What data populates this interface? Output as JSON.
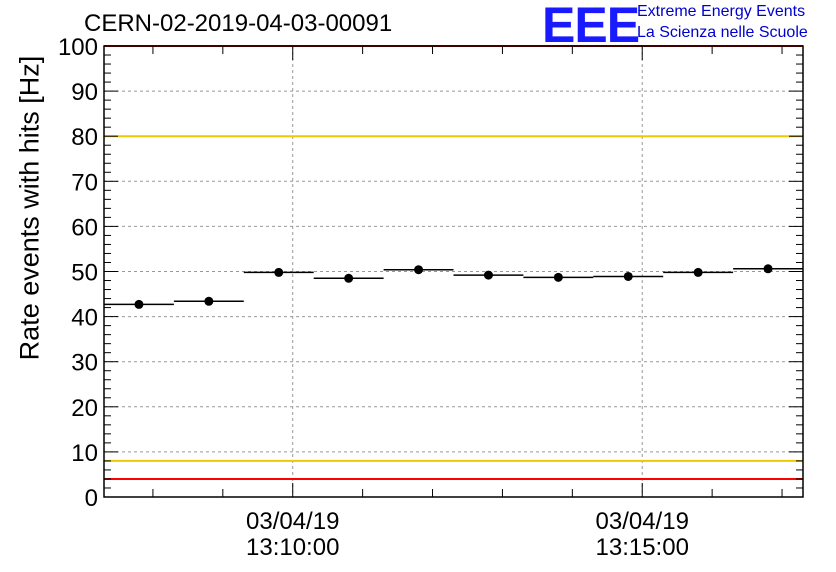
{
  "header": {
    "run_title": "CERN-02-2019-04-03-00091",
    "logo_text": "EEE",
    "logo_line1": "Extreme Energy Events",
    "logo_line2": "La Scienza nelle Scuole"
  },
  "chart_data": {
    "type": "scatter",
    "title": "CERN-02-2019-04-03-00091",
    "xlabel": "",
    "ylabel": "Rate events with hits [Hz]",
    "ylim": [
      0,
      100
    ],
    "yticks": [
      0,
      10,
      20,
      30,
      40,
      50,
      60,
      70,
      80,
      90,
      100
    ],
    "x_ticks_labeled": [
      {
        "minute": 10,
        "date": "03/04/19",
        "time": "13:10:00"
      },
      {
        "minute": 15,
        "date": "03/04/19",
        "time": "13:15:00"
      }
    ],
    "xlim_minutes_after_13h": [
      7.3,
      17.3
    ],
    "bin_width_minutes": 1.0,
    "grid": true,
    "reference_lines": [
      {
        "y": 100,
        "color": "#ff0000"
      },
      {
        "y": 80,
        "color": "#f0c800"
      },
      {
        "y": 8,
        "color": "#f0c800"
      },
      {
        "y": 4,
        "color": "#ff0000"
      }
    ],
    "points": [
      {
        "x": 7.8,
        "y": 42.7
      },
      {
        "x": 8.8,
        "y": 43.4
      },
      {
        "x": 9.8,
        "y": 49.8
      },
      {
        "x": 10.8,
        "y": 48.5
      },
      {
        "x": 11.8,
        "y": 50.4
      },
      {
        "x": 12.8,
        "y": 49.2
      },
      {
        "x": 13.8,
        "y": 48.7
      },
      {
        "x": 14.8,
        "y": 48.9
      },
      {
        "x": 15.8,
        "y": 49.8
      },
      {
        "x": 16.8,
        "y": 50.6
      }
    ]
  }
}
